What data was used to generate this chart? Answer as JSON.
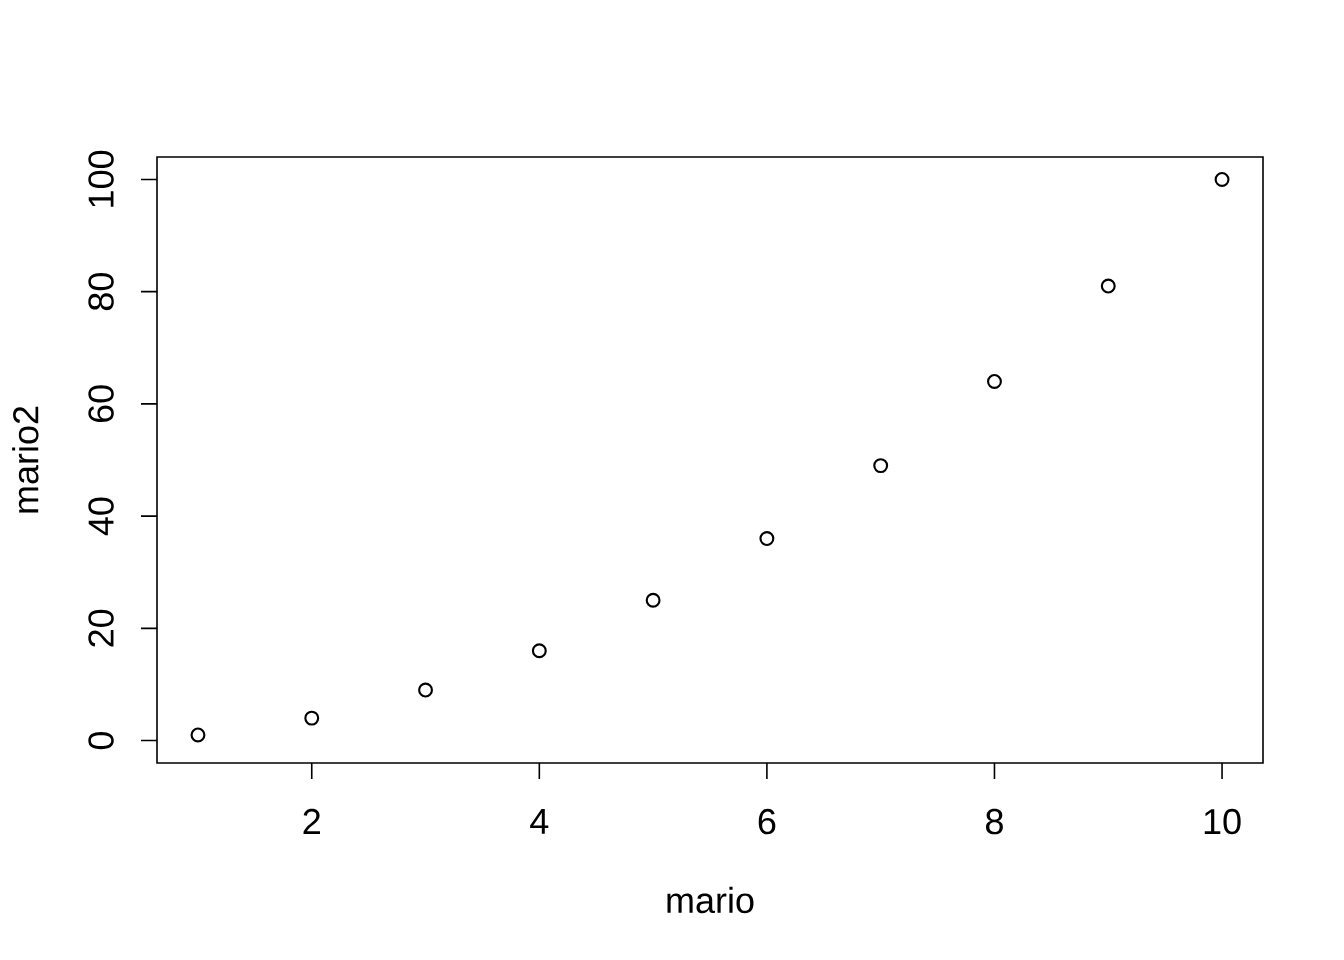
{
  "chart_data": {
    "type": "scatter",
    "x": [
      1,
      2,
      3,
      4,
      5,
      6,
      7,
      8,
      9,
      10
    ],
    "values": [
      1,
      4,
      9,
      16,
      25,
      36,
      49,
      64,
      81,
      100
    ],
    "color": "#000000",
    "marker": "circle",
    "xlabel": "mario",
    "ylabel": "mario2",
    "xlim": [
      0.64,
      10.36
    ],
    "ylim": [
      -4,
      104
    ],
    "xticks": [
      2,
      4,
      6,
      8,
      10
    ],
    "yticks": [
      0,
      20,
      40,
      60,
      80,
      100
    ]
  }
}
